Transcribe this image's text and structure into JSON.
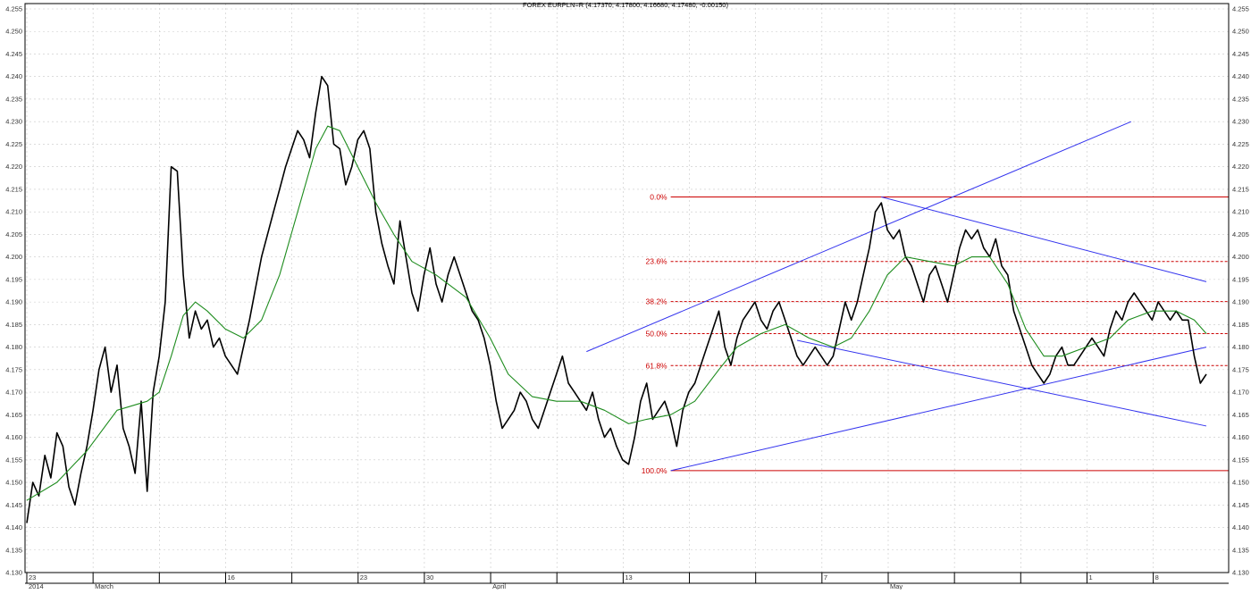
{
  "chart_data": {
    "type": "line",
    "title": "FOREX EURPLN=R (4.17370, 4.17800, 4.16680, 4.17480, -0.00150)",
    "xlabel": "",
    "ylabel": "",
    "ylim": [
      4.13,
      4.255
    ],
    "y_ticks": [
      "4.130",
      "4.135",
      "4.140",
      "4.145",
      "4.150",
      "4.155",
      "4.160",
      "4.165",
      "4.170",
      "4.175",
      "4.180",
      "4.185",
      "4.190",
      "4.195",
      "4.200",
      "4.205",
      "4.210",
      "4.215",
      "4.220",
      "4.225",
      "4.230",
      "4.235",
      "4.240",
      "4.245",
      "4.250",
      "4.255"
    ],
    "x_ticks_top": [
      "23",
      "",
      "",
      "16",
      "",
      "23",
      "30",
      "",
      "",
      "13",
      "",
      "",
      "7",
      "",
      "",
      "",
      "1",
      "8"
    ],
    "x_ticks_bottom": [
      "2014",
      "March",
      "",
      "",
      "",
      "",
      "",
      "April",
      "",
      "",
      "",
      "",
      "",
      "May",
      "",
      "",
      "",
      ""
    ],
    "series": [
      {
        "color": "#000000",
        "points": [
          [
            0,
            4.141
          ],
          [
            2,
            4.15
          ],
          [
            4,
            4.147
          ],
          [
            6,
            4.156
          ],
          [
            8,
            4.151
          ],
          [
            10,
            4.161
          ],
          [
            12,
            4.158
          ],
          [
            14,
            4.149
          ],
          [
            16,
            4.145
          ],
          [
            18,
            4.152
          ],
          [
            20,
            4.158
          ],
          [
            22,
            4.166
          ],
          [
            24,
            4.175
          ],
          [
            26,
            4.18
          ],
          [
            28,
            4.17
          ],
          [
            30,
            4.176
          ],
          [
            32,
            4.162
          ],
          [
            34,
            4.158
          ],
          [
            36,
            4.152
          ],
          [
            38,
            4.168
          ],
          [
            40,
            4.148
          ],
          [
            42,
            4.17
          ],
          [
            44,
            4.178
          ],
          [
            46,
            4.19
          ],
          [
            48,
            4.22
          ],
          [
            50,
            4.219
          ],
          [
            52,
            4.196
          ],
          [
            54,
            4.182
          ],
          [
            56,
            4.188
          ],
          [
            58,
            4.184
          ],
          [
            60,
            4.186
          ],
          [
            62,
            4.18
          ],
          [
            64,
            4.182
          ],
          [
            66,
            4.178
          ],
          [
            68,
            4.176
          ],
          [
            70,
            4.174
          ],
          [
            72,
            4.18
          ],
          [
            74,
            4.186
          ],
          [
            76,
            4.193
          ],
          [
            78,
            4.2
          ],
          [
            80,
            4.205
          ],
          [
            82,
            4.21
          ],
          [
            84,
            4.215
          ],
          [
            86,
            4.22
          ],
          [
            88,
            4.224
          ],
          [
            90,
            4.228
          ],
          [
            92,
            4.226
          ],
          [
            94,
            4.222
          ],
          [
            96,
            4.232
          ],
          [
            98,
            4.24
          ],
          [
            100,
            4.238
          ],
          [
            102,
            4.225
          ],
          [
            104,
            4.224
          ],
          [
            106,
            4.216
          ],
          [
            108,
            4.22
          ],
          [
            110,
            4.226
          ],
          [
            112,
            4.228
          ],
          [
            114,
            4.224
          ],
          [
            116,
            4.21
          ],
          [
            118,
            4.203
          ],
          [
            120,
            4.198
          ],
          [
            122,
            4.194
          ],
          [
            124,
            4.208
          ],
          [
            126,
            4.2
          ],
          [
            128,
            4.192
          ],
          [
            130,
            4.188
          ],
          [
            132,
            4.196
          ],
          [
            134,
            4.202
          ],
          [
            136,
            4.194
          ],
          [
            138,
            4.19
          ],
          [
            140,
            4.196
          ],
          [
            142,
            4.2
          ],
          [
            144,
            4.196
          ],
          [
            146,
            4.192
          ],
          [
            148,
            4.188
          ],
          [
            150,
            4.186
          ],
          [
            152,
            4.182
          ],
          [
            154,
            4.176
          ],
          [
            156,
            4.168
          ],
          [
            158,
            4.162
          ],
          [
            160,
            4.164
          ],
          [
            162,
            4.166
          ],
          [
            164,
            4.17
          ],
          [
            166,
            4.168
          ],
          [
            168,
            4.164
          ],
          [
            170,
            4.162
          ],
          [
            172,
            4.166
          ],
          [
            174,
            4.17
          ],
          [
            176,
            4.174
          ],
          [
            178,
            4.178
          ],
          [
            180,
            4.172
          ],
          [
            182,
            4.17
          ],
          [
            184,
            4.168
          ],
          [
            186,
            4.166
          ],
          [
            188,
            4.17
          ],
          [
            190,
            4.164
          ],
          [
            192,
            4.16
          ],
          [
            194,
            4.162
          ],
          [
            196,
            4.158
          ],
          [
            198,
            4.155
          ],
          [
            200,
            4.154
          ],
          [
            202,
            4.16
          ],
          [
            204,
            4.168
          ],
          [
            206,
            4.172
          ],
          [
            208,
            4.164
          ],
          [
            210,
            4.166
          ],
          [
            212,
            4.168
          ],
          [
            214,
            4.164
          ],
          [
            216,
            4.158
          ],
          [
            218,
            4.166
          ],
          [
            220,
            4.17
          ],
          [
            222,
            4.172
          ],
          [
            224,
            4.176
          ],
          [
            226,
            4.18
          ],
          [
            228,
            4.184
          ],
          [
            230,
            4.188
          ],
          [
            232,
            4.18
          ],
          [
            234,
            4.176
          ],
          [
            236,
            4.182
          ],
          [
            238,
            4.186
          ],
          [
            240,
            4.188
          ],
          [
            242,
            4.19
          ],
          [
            244,
            4.186
          ],
          [
            246,
            4.184
          ],
          [
            248,
            4.188
          ],
          [
            250,
            4.19
          ],
          [
            252,
            4.186
          ],
          [
            254,
            4.182
          ],
          [
            256,
            4.178
          ],
          [
            258,
            4.176
          ],
          [
            260,
            4.178
          ],
          [
            262,
            4.18
          ],
          [
            264,
            4.178
          ],
          [
            266,
            4.176
          ],
          [
            268,
            4.178
          ],
          [
            270,
            4.184
          ],
          [
            272,
            4.19
          ],
          [
            274,
            4.186
          ],
          [
            276,
            4.19
          ],
          [
            278,
            4.196
          ],
          [
            280,
            4.202
          ],
          [
            282,
            4.21
          ],
          [
            284,
            4.212
          ],
          [
            286,
            4.206
          ],
          [
            288,
            4.204
          ],
          [
            290,
            4.206
          ],
          [
            292,
            4.2
          ],
          [
            294,
            4.198
          ],
          [
            296,
            4.194
          ],
          [
            298,
            4.19
          ],
          [
            300,
            4.196
          ],
          [
            302,
            4.198
          ],
          [
            304,
            4.194
          ],
          [
            306,
            4.19
          ],
          [
            308,
            4.196
          ],
          [
            310,
            4.202
          ],
          [
            312,
            4.206
          ],
          [
            314,
            4.204
          ],
          [
            316,
            4.206
          ],
          [
            318,
            4.202
          ],
          [
            320,
            4.2
          ],
          [
            322,
            4.204
          ],
          [
            324,
            4.198
          ],
          [
            326,
            4.196
          ],
          [
            328,
            4.188
          ],
          [
            330,
            4.184
          ],
          [
            332,
            4.18
          ],
          [
            334,
            4.176
          ],
          [
            336,
            4.174
          ],
          [
            338,
            4.172
          ],
          [
            340,
            4.174
          ],
          [
            342,
            4.178
          ],
          [
            344,
            4.18
          ],
          [
            346,
            4.176
          ],
          [
            348,
            4.176
          ],
          [
            350,
            4.178
          ],
          [
            352,
            4.18
          ],
          [
            354,
            4.182
          ],
          [
            356,
            4.18
          ],
          [
            358,
            4.178
          ],
          [
            360,
            4.184
          ],
          [
            362,
            4.188
          ],
          [
            364,
            4.186
          ],
          [
            366,
            4.19
          ],
          [
            368,
            4.192
          ],
          [
            370,
            4.19
          ],
          [
            372,
            4.188
          ],
          [
            374,
            4.186
          ],
          [
            376,
            4.19
          ],
          [
            378,
            4.188
          ],
          [
            380,
            4.186
          ],
          [
            382,
            4.188
          ],
          [
            384,
            4.186
          ],
          [
            386,
            4.186
          ],
          [
            388,
            4.178
          ],
          [
            390,
            4.172
          ],
          [
            392,
            4.174
          ]
        ]
      },
      {
        "color": "#1e8c1e",
        "points": [
          [
            0,
            4.146
          ],
          [
            10,
            4.15
          ],
          [
            20,
            4.157
          ],
          [
            30,
            4.166
          ],
          [
            40,
            4.168
          ],
          [
            44,
            4.17
          ],
          [
            48,
            4.178
          ],
          [
            52,
            4.187
          ],
          [
            56,
            4.19
          ],
          [
            60,
            4.188
          ],
          [
            66,
            4.184
          ],
          [
            72,
            4.182
          ],
          [
            78,
            4.186
          ],
          [
            84,
            4.196
          ],
          [
            90,
            4.21
          ],
          [
            96,
            4.224
          ],
          [
            100,
            4.229
          ],
          [
            104,
            4.228
          ],
          [
            110,
            4.22
          ],
          [
            116,
            4.212
          ],
          [
            122,
            4.205
          ],
          [
            128,
            4.199
          ],
          [
            136,
            4.196
          ],
          [
            146,
            4.191
          ],
          [
            154,
            4.182
          ],
          [
            160,
            4.174
          ],
          [
            168,
            4.169
          ],
          [
            176,
            4.168
          ],
          [
            184,
            4.168
          ],
          [
            192,
            4.166
          ],
          [
            200,
            4.163
          ],
          [
            206,
            4.164
          ],
          [
            214,
            4.165
          ],
          [
            222,
            4.168
          ],
          [
            230,
            4.175
          ],
          [
            236,
            4.18
          ],
          [
            244,
            4.183
          ],
          [
            252,
            4.185
          ],
          [
            260,
            4.182
          ],
          [
            268,
            4.18
          ],
          [
            274,
            4.182
          ],
          [
            280,
            4.188
          ],
          [
            286,
            4.196
          ],
          [
            292,
            4.2
          ],
          [
            300,
            4.199
          ],
          [
            308,
            4.198
          ],
          [
            314,
            4.2
          ],
          [
            320,
            4.2
          ],
          [
            326,
            4.194
          ],
          [
            332,
            4.184
          ],
          [
            338,
            4.178
          ],
          [
            344,
            4.178
          ],
          [
            352,
            4.18
          ],
          [
            360,
            4.182
          ],
          [
            366,
            4.186
          ],
          [
            374,
            4.188
          ],
          [
            382,
            4.188
          ],
          [
            388,
            4.186
          ],
          [
            392,
            4.183
          ]
        ]
      }
    ],
    "annotations": [
      {
        "type": "hline",
        "y": 4.2133,
        "label": "0.0%",
        "color": "#cc0000",
        "style": "solid"
      },
      {
        "type": "hline",
        "y": 4.199,
        "label": "23.6%",
        "color": "#cc0000",
        "style": "dashed"
      },
      {
        "type": "hline",
        "y": 4.1901,
        "label": "38.2%",
        "color": "#cc0000",
        "style": "dashed"
      },
      {
        "type": "hline",
        "y": 4.183,
        "label": "50.0%",
        "color": "#cc0000",
        "style": "dashed"
      },
      {
        "type": "hline",
        "y": 4.1759,
        "label": "61.8%",
        "color": "#cc0000",
        "style": "dashed"
      },
      {
        "type": "hline",
        "y": 4.1526,
        "label": "100.0%",
        "color": "#cc0000",
        "style": "solid"
      }
    ],
    "trendlines": [
      {
        "color": "#3333ee",
        "from": [
          214,
          4.1526
        ],
        "to": [
          392,
          4.18
        ]
      },
      {
        "color": "#3333ee",
        "from": [
          186,
          4.179
        ],
        "to": [
          367,
          4.23
        ]
      },
      {
        "color": "#3333ee",
        "from": [
          284,
          4.2133
        ],
        "to": [
          392,
          4.1945
        ]
      },
      {
        "color": "#3333ee",
        "from": [
          256,
          4.1815
        ],
        "to": [
          392,
          4.1625
        ]
      }
    ],
    "x_range": [
      0,
      392
    ],
    "grid": true
  }
}
